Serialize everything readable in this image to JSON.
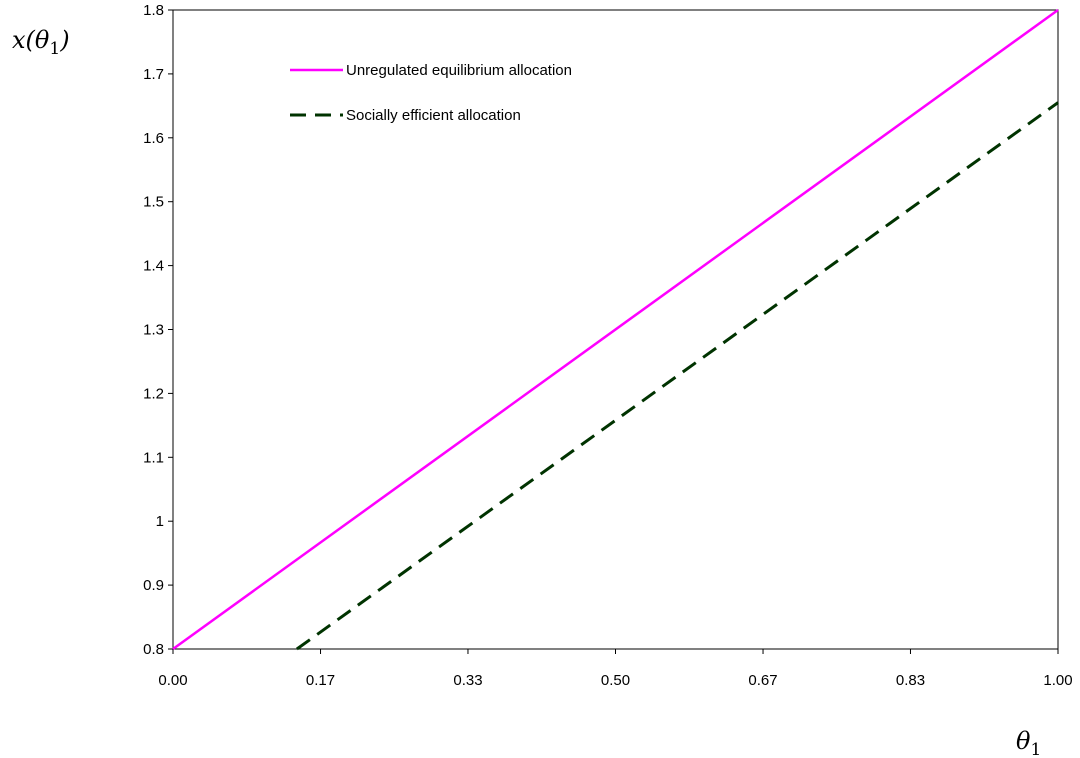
{
  "chart_data": {
    "type": "line",
    "x": [
      0.0,
      1.0
    ],
    "series": [
      {
        "name": "Unregulated equilibrium allocation",
        "x": [
          0.0,
          1.0
        ],
        "y": [
          0.8,
          1.8
        ],
        "color": "#ff00ff",
        "dash": "solid"
      },
      {
        "name": "Socially efficient allocation",
        "x": [
          0.14,
          1.0
        ],
        "y": [
          0.8,
          1.655
        ],
        "color": "#003300",
        "dash": "dashed"
      }
    ],
    "xlabel": "θ",
    "xlabel_sub": "1",
    "ylabel": "x(θ",
    "ylabel_sub": "1",
    "ylabel_tail": ")",
    "xlim": [
      0.0,
      1.0
    ],
    "ylim": [
      0.8,
      1.8
    ],
    "xticks": [
      {
        "value": 0.0,
        "label": "0.00"
      },
      {
        "value": 0.1667,
        "label": "0.17"
      },
      {
        "value": 0.3333,
        "label": "0.33"
      },
      {
        "value": 0.5,
        "label": "0.50"
      },
      {
        "value": 0.6667,
        "label": "0.67"
      },
      {
        "value": 0.8333,
        "label": "0.83"
      },
      {
        "value": 1.0,
        "label": "1.00"
      }
    ],
    "yticks": [
      {
        "value": 0.8,
        "label": "0.8"
      },
      {
        "value": 0.9,
        "label": "0.9"
      },
      {
        "value": 1.0,
        "label": "1"
      },
      {
        "value": 1.1,
        "label": "1.1"
      },
      {
        "value": 1.2,
        "label": "1.2"
      },
      {
        "value": 1.3,
        "label": "1.3"
      },
      {
        "value": 1.4,
        "label": "1.4"
      },
      {
        "value": 1.5,
        "label": "1.5"
      },
      {
        "value": 1.6,
        "label": "1.6"
      },
      {
        "value": 1.7,
        "label": "1.7"
      },
      {
        "value": 1.8,
        "label": "1.8"
      }
    ],
    "grid": false,
    "legend_position": "top-left"
  }
}
